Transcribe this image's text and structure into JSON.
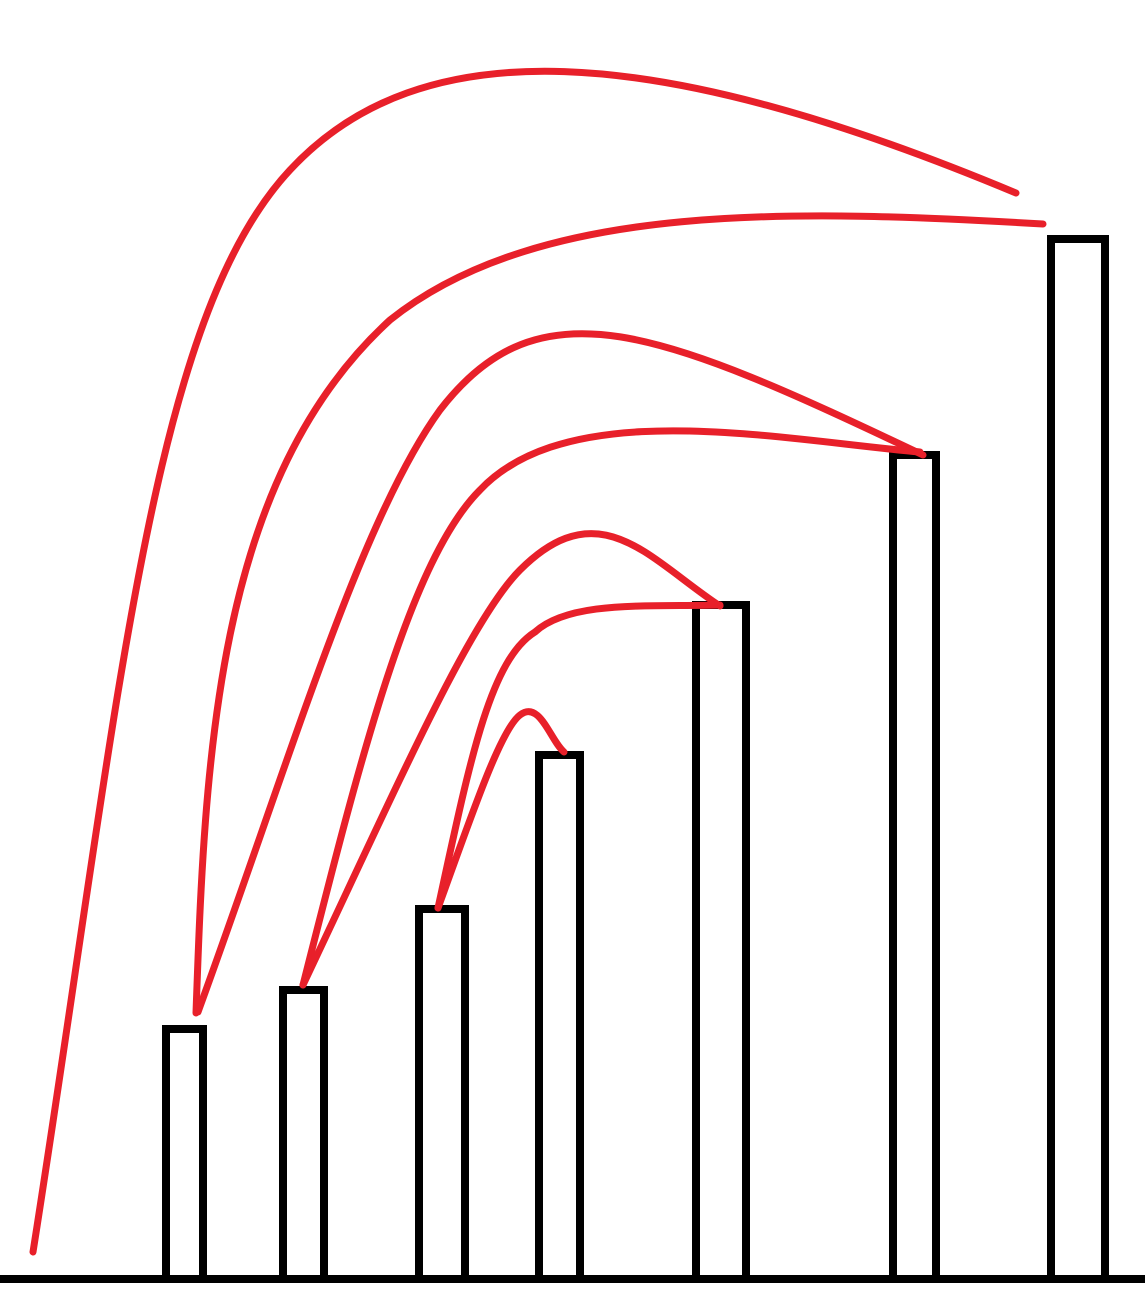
{
  "diagram": {
    "colors": {
      "background": "#ffffff",
      "pillar_outline": "#000000",
      "ground_line": "#000000",
      "arc_stroke": "#e8202a"
    },
    "pillars": [
      {
        "id": 1,
        "relative_height": 1
      },
      {
        "id": 2,
        "relative_height": 2
      },
      {
        "id": 3,
        "relative_height": 3
      },
      {
        "id": 4,
        "relative_height": 4
      },
      {
        "id": 5,
        "relative_height": 5
      },
      {
        "id": 6,
        "relative_height": 6
      },
      {
        "id": 7,
        "relative_height": 7
      }
    ],
    "arcs": [
      {
        "from": "ground",
        "to": 7
      },
      {
        "from": 1,
        "to": 7
      },
      {
        "from": 1,
        "to": 6
      },
      {
        "from": 2,
        "to": 6
      },
      {
        "from": 2,
        "to": 5
      },
      {
        "from": 3,
        "to": 5
      },
      {
        "from": 3,
        "to": 4
      }
    ]
  }
}
